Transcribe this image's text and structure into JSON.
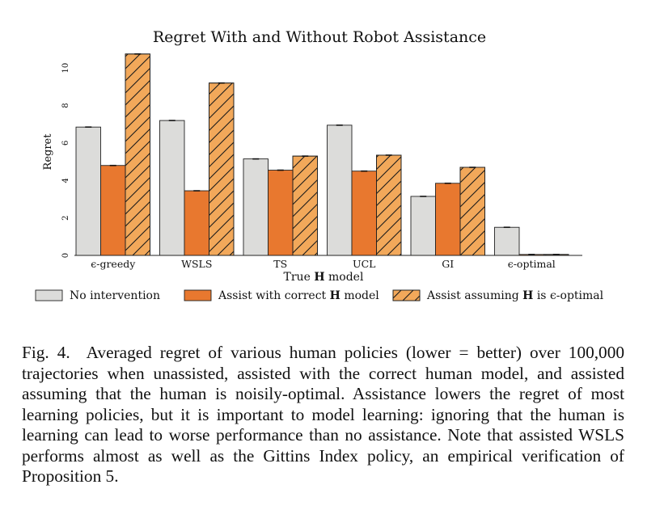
{
  "chart_data": {
    "type": "bar",
    "title": "Regret With and Without Robot Assistance",
    "xlabel_prefix": "True ",
    "xlabel_bold": "H",
    "xlabel_suffix": " model",
    "ylabel": "Regret",
    "ylim": [
      0,
      11
    ],
    "yticks": [
      0,
      2,
      4,
      6,
      8,
      10
    ],
    "categories": [
      "ϵ-greedy",
      "WSLS",
      "TS",
      "UCL",
      "GI",
      "ϵ-optimal"
    ],
    "series": [
      {
        "name": "No intervention",
        "values": [
          6.85,
          7.2,
          5.15,
          6.95,
          3.15,
          1.5
        ],
        "color": "#dcdcda",
        "hatch": false
      },
      {
        "name": "Assist with correct H model",
        "values": [
          4.8,
          3.45,
          4.55,
          4.5,
          3.85,
          0.05
        ],
        "color": "#e8782f",
        "hatch": false
      },
      {
        "name": "Assist assuming H is ϵ-optimal",
        "values": [
          10.75,
          9.2,
          5.3,
          5.35,
          4.7,
          0.05
        ],
        "color": "#f2a85a",
        "hatch": true
      }
    ],
    "legend": [
      {
        "prefix": "No intervention",
        "bold": "",
        "suffix": ""
      },
      {
        "prefix": "Assist with correct ",
        "bold": "H",
        "suffix": " model"
      },
      {
        "prefix": "Assist assuming ",
        "bold": "H",
        "suffix": " is ϵ-optimal"
      }
    ],
    "legend_position": "bottom"
  },
  "caption": {
    "label": "Fig. 4.",
    "text": "Averaged regret of various human policies (lower = better) over 100,000 trajectories when unassisted, assisted with the correct human model, and assisted assuming that the human is noisily-optimal. Assistance lowers the regret of most learning policies, but it is important to model learning: ignoring that the human is learning can lead to worse performance than no assistance. Note that assisted WSLS performs almost as well as the Gittins Index policy, an empirical verification of Proposition 5."
  }
}
